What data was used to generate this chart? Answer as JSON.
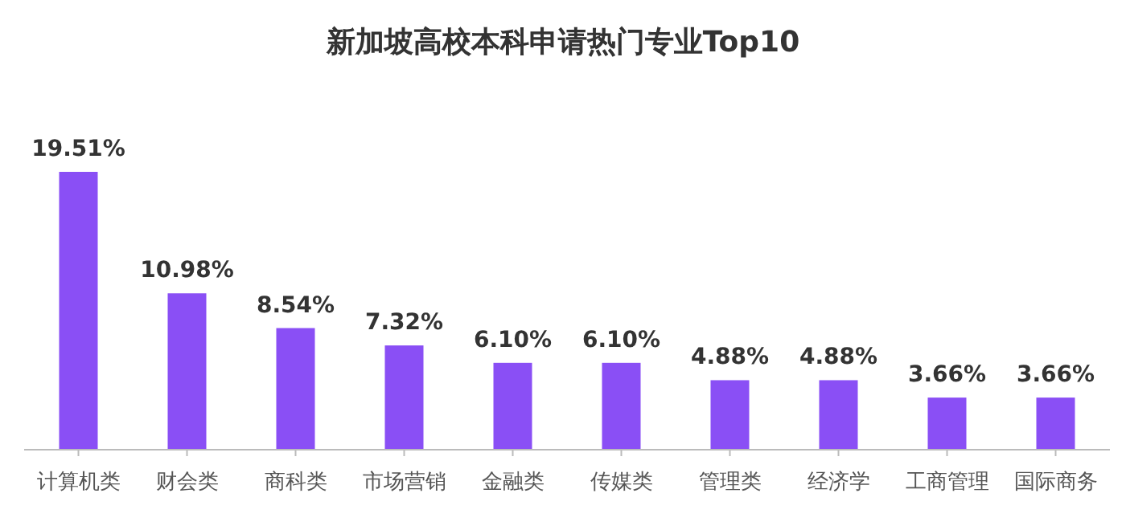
{
  "chart_data": {
    "type": "bar",
    "title": "新加坡高校本科申请热门专业Top10",
    "categories": [
      "计算机类",
      "财会类",
      "商科类",
      "市场营销",
      "金融类",
      "传媒类",
      "管理类",
      "经济学",
      "工商管理",
      "国际商务"
    ],
    "values": [
      19.51,
      10.98,
      8.54,
      7.32,
      6.1,
      6.1,
      4.88,
      4.88,
      3.66,
      3.66
    ],
    "value_labels": [
      "19.51%",
      "10.98%",
      "8.54%",
      "7.32%",
      "6.10%",
      "6.10%",
      "4.88%",
      "4.88%",
      "3.66%",
      "3.66%"
    ],
    "color": "#8a4ff5"
  }
}
